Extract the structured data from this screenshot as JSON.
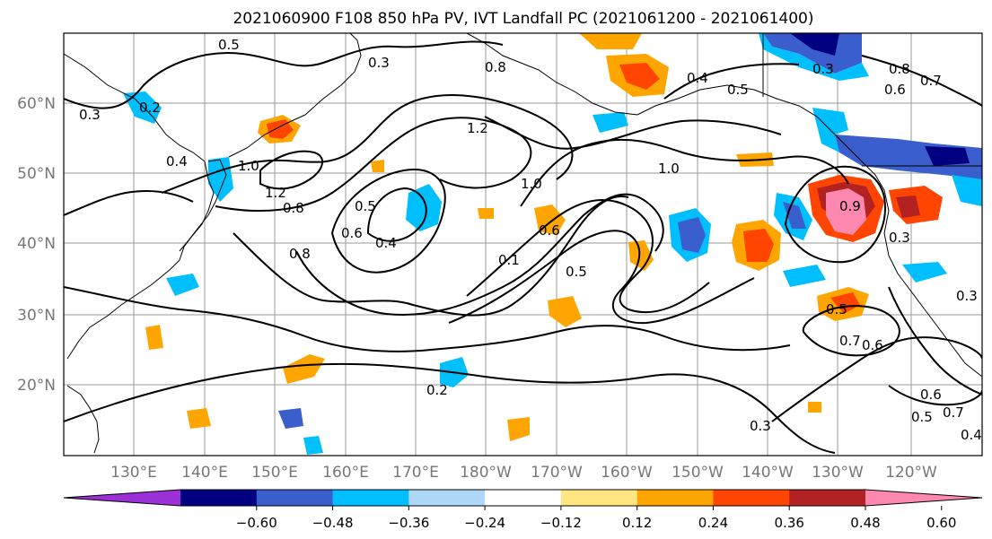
{
  "title": "2021060900 F108 850 hPa PV, IVT Landfall PC (2021061200 - 2021061400)",
  "lat_labels": [
    "60°N",
    "50°N",
    "40°N",
    "30°N",
    "20°N"
  ],
  "lon_labels": [
    "130°E",
    "140°E",
    "150°E",
    "160°E",
    "170°E",
    "180°W",
    "170°W",
    "160°W",
    "150°W",
    "140°W",
    "130°W",
    "120°W"
  ],
  "colorbar": {
    "ticks": [
      "−0.60",
      "−0.48",
      "−0.36",
      "−0.24",
      "−0.12",
      "0.12",
      "0.24",
      "0.36",
      "0.48",
      "0.60"
    ],
    "colors": [
      "#9b30d6",
      "#000080",
      "#3a5fcd",
      "#00bfff",
      "#add8f7",
      "#ffffff",
      "#ffe680",
      "#ffa500",
      "#ff4500",
      "#b22222",
      "#ff88b0"
    ]
  },
  "contour_labels": [
    "0.5",
    "0.3",
    "0.8",
    "1.2",
    "0.4",
    "0.5",
    "0.8",
    "0.6",
    "0.7",
    "0.3",
    "1.0",
    "0.2",
    "0.4",
    "1.0",
    "1.2",
    "0.8",
    "0.5",
    "0.4",
    "0.8",
    "0.6",
    "0.1",
    "0.6",
    "0.5",
    "1.0",
    "0.3",
    "0.5",
    "0.7",
    "0.6",
    "0.2",
    "0.3",
    "0.6",
    "0.5",
    "0.7",
    "0.4",
    "0.3",
    "0.9",
    "0.3"
  ]
}
